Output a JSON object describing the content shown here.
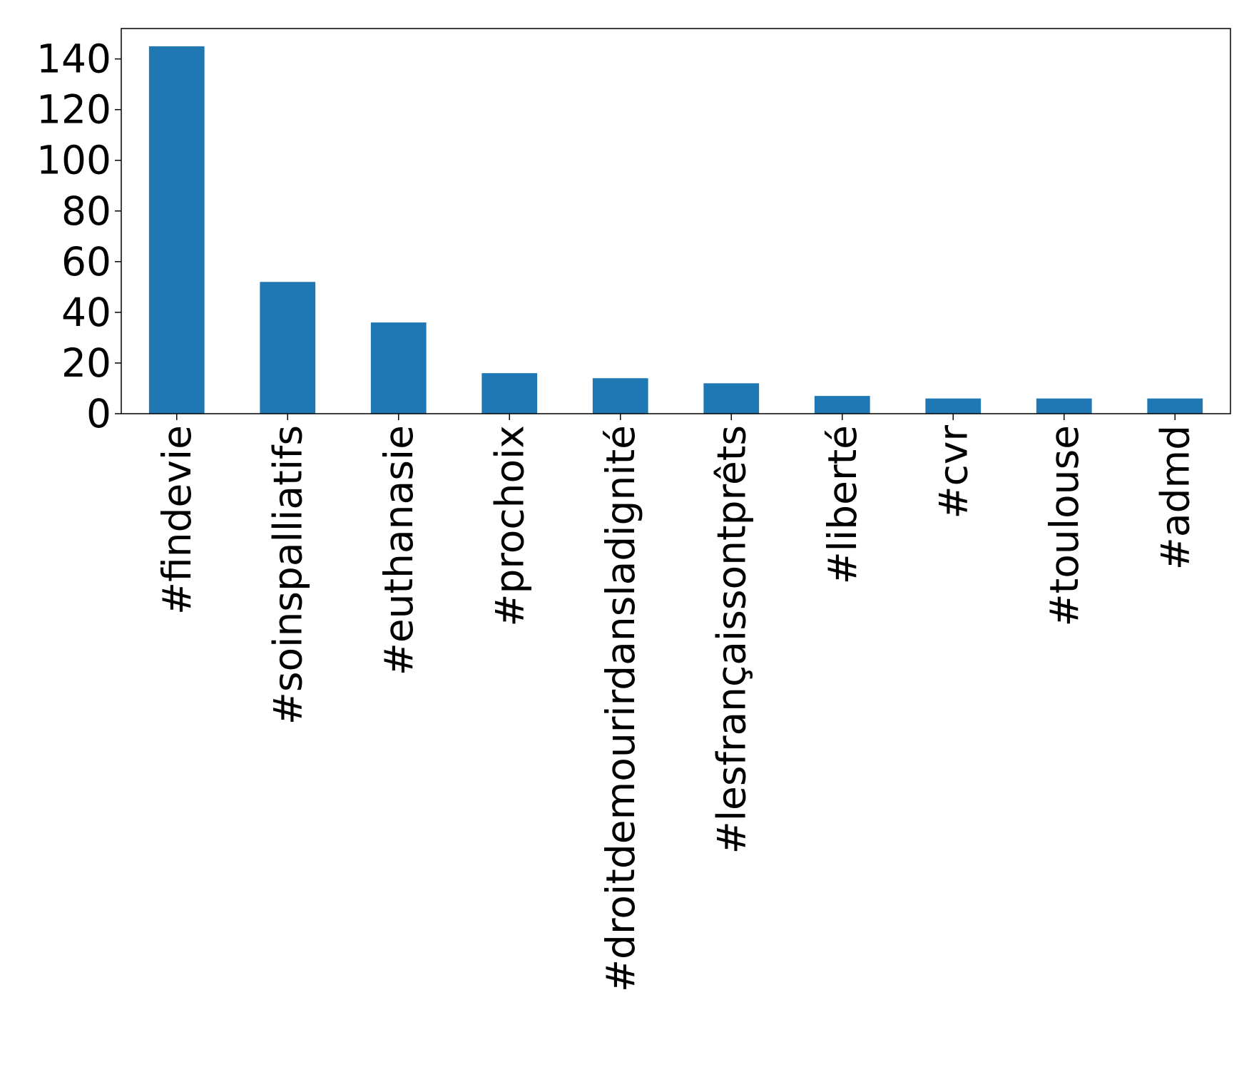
{
  "chart_data": {
    "type": "bar",
    "title": "",
    "xlabel": "",
    "ylabel": "",
    "categories": [
      "#findevie",
      "#soinspalliatifs",
      "#euthanasie",
      "#prochoix",
      "#droitdemourirdansladignité",
      "#lesfrançaissontprêts",
      "#liberté",
      "#cvr",
      "#toulouse",
      "#admd"
    ],
    "values": [
      145,
      52,
      36,
      16,
      14,
      12,
      7,
      6,
      6,
      6
    ],
    "ylim": [
      0,
      152
    ],
    "yticks": [
      0,
      20,
      40,
      60,
      80,
      100,
      120,
      140
    ],
    "grid": false,
    "legend": "none",
    "bar_color": "#1f77b4",
    "label_rotation": -90
  }
}
